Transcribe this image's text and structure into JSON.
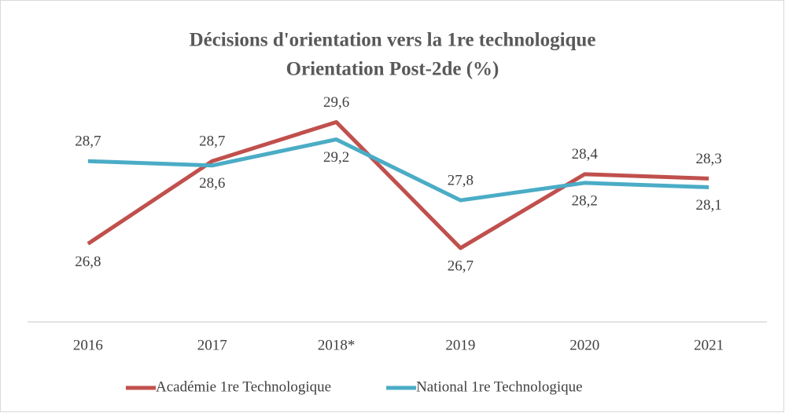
{
  "chart_data": {
    "type": "line",
    "title": "Décisions d'orientation vers la 1re technologique",
    "subtitle": "Orientation Post-2de (%)",
    "categories": [
      "2016",
      "2017",
      "2018*",
      "2019",
      "2020",
      "2021"
    ],
    "series": [
      {
        "name": "Académie 1re Technologique",
        "color": "#c0504d",
        "values": [
          26.8,
          28.7,
          29.6,
          26.7,
          28.4,
          28.3
        ],
        "value_labels": [
          "26,8",
          "28,7",
          "29,6",
          "26,7",
          "28,4",
          "28,3"
        ]
      },
      {
        "name": "National 1re Technologique",
        "color": "#4bacc6",
        "values": [
          28.7,
          28.6,
          29.2,
          27.8,
          28.2,
          28.1
        ],
        "value_labels": [
          "28,7",
          "28,6",
          "29,2",
          "27,8",
          "28,2",
          "28,1"
        ]
      }
    ],
    "ylim": [
      25,
      31
    ],
    "grid": false,
    "legend": "bottom"
  }
}
